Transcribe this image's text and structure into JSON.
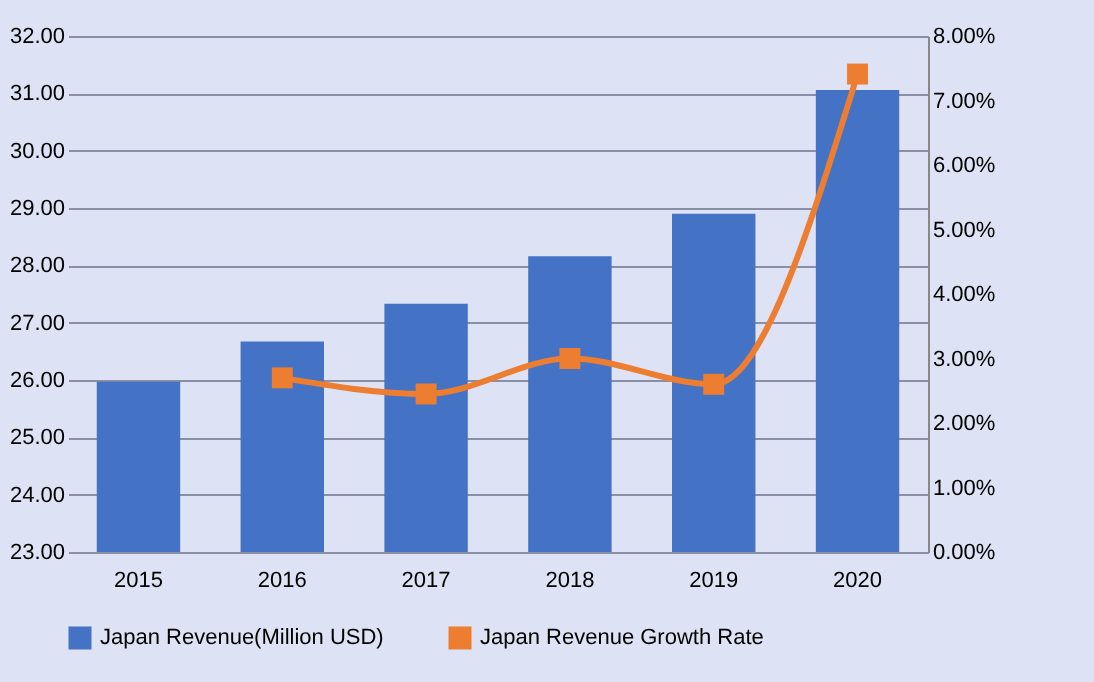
{
  "chart_data": {
    "type": "bar",
    "categories": [
      "2015",
      "2016",
      "2017",
      "2018",
      "2019",
      "2020"
    ],
    "series": [
      {
        "name": "Japan Revenue(Million USD)",
        "color": "#4472c4",
        "values": [
          25.97,
          26.67,
          27.33,
          28.16,
          28.9,
          31.06
        ]
      },
      {
        "name": "Japan Revenue Growth Rate",
        "type": "line",
        "axis": "y2",
        "color": "#ed7d31",
        "values": [
          null,
          2.7,
          2.45,
          3.0,
          2.6,
          7.41
        ]
      }
    ],
    "ylim": [
      23,
      32
    ],
    "yticks": [
      {
        "value": 23,
        "label": "23.00"
      },
      {
        "value": 24,
        "label": "24.00"
      },
      {
        "value": 25,
        "label": "25.00"
      },
      {
        "value": 26,
        "label": "26.00"
      },
      {
        "value": 27,
        "label": "27.00"
      },
      {
        "value": 28,
        "label": "28.00"
      },
      {
        "value": 29,
        "label": "29.00"
      },
      {
        "value": 30,
        "label": "30.00"
      },
      {
        "value": 31,
        "label": "31.00"
      },
      {
        "value": 32,
        "label": "32.00"
      }
    ],
    "y2lim": [
      0,
      8
    ],
    "y2ticks": [
      {
        "value": 0,
        "label": "0.00%"
      },
      {
        "value": 1,
        "label": "1.00%"
      },
      {
        "value": 2,
        "label": "2.00%"
      },
      {
        "value": 3,
        "label": "3.00%"
      },
      {
        "value": 4,
        "label": "4.00%"
      },
      {
        "value": 5,
        "label": "5.00%"
      },
      {
        "value": 6,
        "label": "6.00%"
      },
      {
        "value": 7,
        "label": "7.00%"
      },
      {
        "value": 8,
        "label": "8.00%"
      }
    ],
    "grid": "y",
    "legend": "bottom",
    "marker": "square"
  }
}
